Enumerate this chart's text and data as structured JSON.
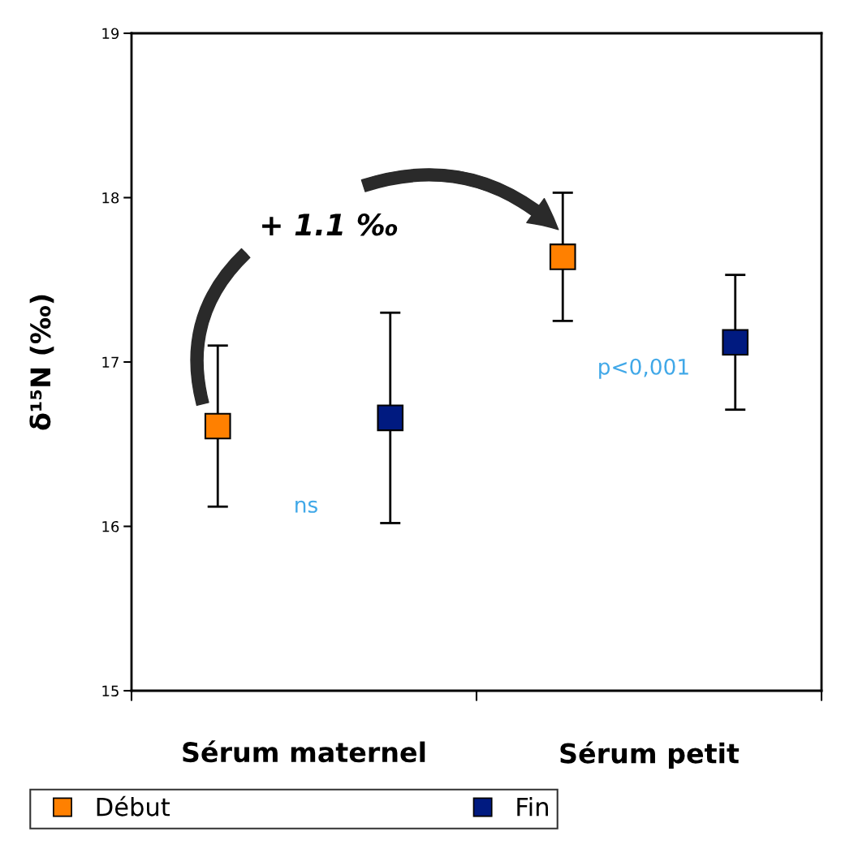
{
  "chart_data": {
    "type": "scatter",
    "ylabel": "δ¹⁵N (‰)",
    "categories": [
      "Sérum maternel",
      "Sérum petit"
    ],
    "series": [
      {
        "name": "Début",
        "color": "#ff8000",
        "values": [
          16.61,
          17.64
        ],
        "errors": [
          0.49,
          0.39
        ]
      },
      {
        "name": "Fin",
        "color": "#001a80",
        "values": [
          16.66,
          17.12
        ],
        "errors": [
          0.64,
          0.41
        ]
      }
    ],
    "ylim": [
      15,
      19
    ],
    "yticks": [
      15,
      16,
      17,
      18,
      19
    ],
    "annotations": [
      "+ 1.1 ‰",
      "ns",
      "p<0,001"
    ],
    "marker": "square",
    "grid": false,
    "legend": "bottom"
  }
}
